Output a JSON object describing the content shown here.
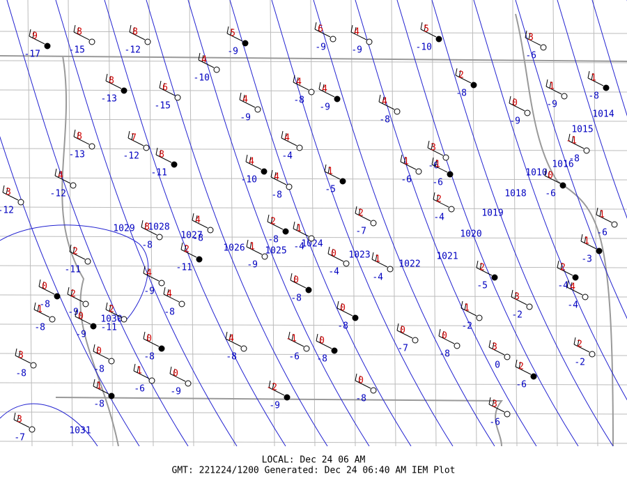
{
  "stations": [
    {
      "temp": 9,
      "dew": -17
    },
    {
      "temp": 8,
      "dew": -15
    },
    {
      "temp": 8,
      "dew": -12
    },
    {
      "temp": 5,
      "dew": -9
    },
    {
      "temp": 6,
      "dew": -9
    },
    {
      "temp": 4,
      "dew": -9
    },
    {
      "temp": 5,
      "dew": -10
    },
    {
      "temp": 3,
      "dew": -6
    },
    {
      "temp": 4,
      "dew": -10
    },
    {
      "temp": 8,
      "dew": -13
    },
    {
      "temp": 6,
      "dew": -15
    },
    {
      "temp": 4,
      "dew": -8
    },
    {
      "temp": 4,
      "dew": -9
    },
    {
      "temp": 4,
      "dew": -9
    },
    {
      "temp": 4,
      "dew": -8
    },
    {
      "temp": 2,
      "dew": -8
    },
    {
      "temp": 0,
      "dew": -9
    },
    {
      "temp": 1,
      "dew": -9
    },
    {
      "temp": 1,
      "dew": -8
    },
    {
      "temp": 8,
      "dew": -13
    },
    {
      "temp": 7,
      "dew": -12
    },
    {
      "temp": 8,
      "dew": -11
    },
    {
      "temp": 4,
      "dew": -12
    },
    {
      "temp": 3,
      "dew": -12
    },
    {
      "temp": 4,
      "dew": -10
    },
    {
      "temp": 4,
      "dew": -8
    },
    {
      "temp": 4,
      "dew": -4
    },
    {
      "temp": 1,
      "dew": -5
    },
    {
      "temp": 1,
      "dew": -6
    },
    {
      "temp": 3,
      "dew": -6
    },
    {
      "temp": 1,
      "dew": -6
    },
    {
      "temp": 2,
      "dew": -4
    },
    {
      "temp": 2,
      "dew": -7
    },
    {
      "temp": 0,
      "dew": -6
    },
    {
      "temp": -1,
      "dew": -8
    },
    {
      "temp": 1,
      "dew": -6
    },
    {
      "temp": 1,
      "dew": -3
    },
    {
      "temp": 4,
      "dew": -8
    },
    {
      "temp": 8,
      "dew": -8
    },
    {
      "temp": 2,
      "dew": -8
    },
    {
      "temp": 1,
      "dew": -4
    },
    {
      "temp": 1,
      "dew": -9
    },
    {
      "temp": 2,
      "dew": -11
    },
    {
      "temp": 4,
      "dew": -9
    },
    {
      "temp": 2,
      "dew": -11
    },
    {
      "temp": 0,
      "dew": -8
    },
    {
      "temp": 1,
      "dew": -8
    },
    {
      "temp": 2,
      "dew": -9
    },
    {
      "temp": 0,
      "dew": -9
    },
    {
      "temp": 2,
      "dew": -11
    },
    {
      "temp": 4,
      "dew": -8
    },
    {
      "temp": 0,
      "dew": -8
    },
    {
      "temp": 0,
      "dew": -4
    },
    {
      "temp": 1,
      "dew": -4
    },
    {
      "temp": 0,
      "dew": -8
    },
    {
      "temp": 0,
      "dew": -7
    },
    {
      "temp": 0,
      "dew": -8
    },
    {
      "temp": 2,
      "dew": -5
    },
    {
      "temp": 1,
      "dew": -2
    },
    {
      "temp": 3,
      "dew": -2
    },
    {
      "temp": 2,
      "dew": -4
    },
    {
      "temp": 4,
      "dew": -4
    },
    {
      "temp": 0,
      "dew": -8
    },
    {
      "temp": 0,
      "dew": -8
    },
    {
      "temp": 4,
      "dew": -8
    },
    {
      "temp": -1,
      "dew": -6
    },
    {
      "temp": 0,
      "dew": -8
    },
    {
      "temp": 0,
      "dew": -9
    },
    {
      "temp": 1,
      "dew": -6
    },
    {
      "temp": 1,
      "dew": -8
    },
    {
      "temp": 3,
      "dew": -8
    },
    {
      "temp": 3,
      "dew": -7
    },
    {
      "temp": -2,
      "dew": -9
    },
    {
      "temp": 0,
      "dew": -8
    },
    {
      "temp": 3,
      "dew": 0
    },
    {
      "temp": 2,
      "dew": -6
    },
    {
      "temp": 3,
      "dew": -6
    },
    {
      "temp": 2,
      "dew": -2
    }
  ],
  "isobar_labels": [
    "1031",
    "1030",
    "1029",
    "1028",
    "1027",
    "1026",
    "1025",
    "1024",
    "1023",
    "1022",
    "1021",
    "1020",
    "1019",
    "1018",
    "1016",
    "1015",
    "1014",
    "1010"
  ],
  "footer": {
    "local": "LOCAL: Dec 24 06 AM",
    "gmt": "GMT: 221224/1200 Generated: Dec 24 06:40 AM IEM Plot"
  }
}
